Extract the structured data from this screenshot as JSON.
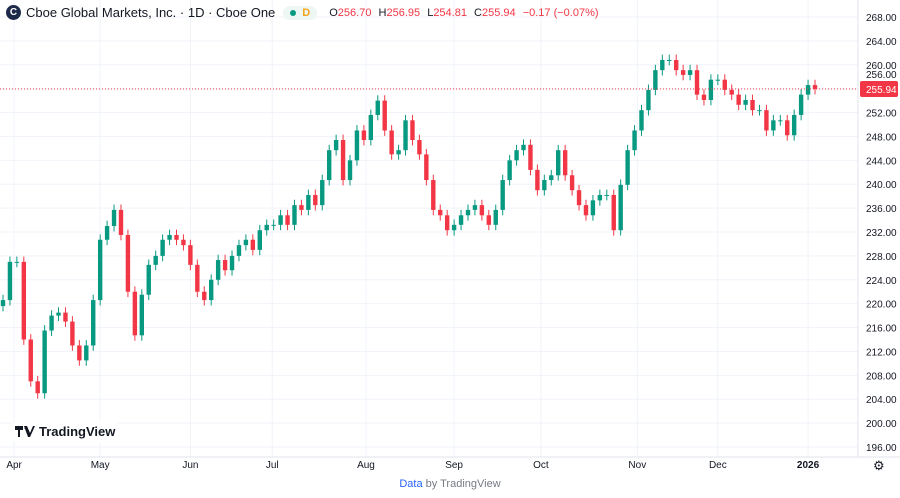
{
  "header": {
    "symbol_icon_letter": "C",
    "title": "Cboe Global Markets, Inc. · 1D · Cboe One",
    "status_letter": "D",
    "open_label": "O",
    "open": "256.70",
    "high_label": "H",
    "high": "256.95",
    "low_label": "L",
    "low": "254.81",
    "close_label": "C",
    "close": "255.94",
    "change": "−0.17 (−0.07%)"
  },
  "logo_text": "TradingView",
  "footer": {
    "data_label": "Data",
    "by_label": "by TradingView"
  },
  "colors": {
    "up": "#089981",
    "down": "#f23645",
    "grid": "#f0f3fa",
    "price_line": "#f23645"
  },
  "chart_data": {
    "type": "candlestick",
    "interval": "1D",
    "last_price": "255.94",
    "ylim": [
      194,
      270
    ],
    "y_ticks": [
      "196.00",
      "200.00",
      "204.00",
      "208.00",
      "212.00",
      "216.00",
      "220.00",
      "224.00",
      "228.00",
      "232.00",
      "236.00",
      "240.00",
      "244.00",
      "248.00",
      "252.00",
      "256.00",
      "260.00",
      "264.00",
      "268.00"
    ],
    "x_ticks": [
      {
        "label": "Apr",
        "index": 1.6
      },
      {
        "label": "May",
        "index": 14
      },
      {
        "label": "Jun",
        "index": 27
      },
      {
        "label": "Jul",
        "index": 38.8
      },
      {
        "label": "Aug",
        "index": 52.3
      },
      {
        "label": "Sep",
        "index": 65
      },
      {
        "label": "Oct",
        "index": 77.5
      },
      {
        "label": "Nov",
        "index": 91.4
      },
      {
        "label": "Dec",
        "index": 103
      },
      {
        "label": "2026",
        "index": 116
      }
    ],
    "closes": [
      220.6,
      227,
      227,
      214,
      207,
      205,
      215.5,
      218,
      218.5,
      217,
      213,
      210.5,
      213,
      220.6,
      230.7,
      233,
      235.7,
      231.5,
      222,
      214.7,
      221.5,
      226.5,
      228,
      230.7,
      231.5,
      230.7,
      229.8,
      226.5,
      222,
      220.6,
      224,
      227.3,
      225.6,
      228,
      229.8,
      230.7,
      229,
      232.3,
      233.2,
      233.2,
      234.8,
      233.2,
      236.5,
      235.7,
      238.2,
      236.5,
      240.7,
      245.7,
      247.4,
      240.7,
      244,
      249,
      247.4,
      251.6,
      254,
      249,
      245,
      245.7,
      250.7,
      247.4,
      245,
      240.7,
      235.7,
      234.8,
      232.3,
      233.2,
      234.8,
      235.7,
      236.5,
      234.8,
      233.2,
      235.7,
      240.7,
      244,
      245.7,
      246.6,
      242.4,
      239,
      240.7,
      241.5,
      245.7,
      241.5,
      239,
      236.5,
      234.8,
      237.3,
      238.2,
      238.2,
      232.3,
      239.9,
      245.7,
      249,
      252.4,
      255.8,
      259.1,
      260.8,
      260.8,
      259.1,
      258.3,
      259.1,
      255,
      254.1,
      257.5,
      257.5,
      255.8,
      255,
      253.3,
      254.1,
      252.4,
      252.4,
      249,
      250.7,
      250.7,
      248.2,
      251.6,
      255,
      256.6,
      255.94
    ]
  }
}
